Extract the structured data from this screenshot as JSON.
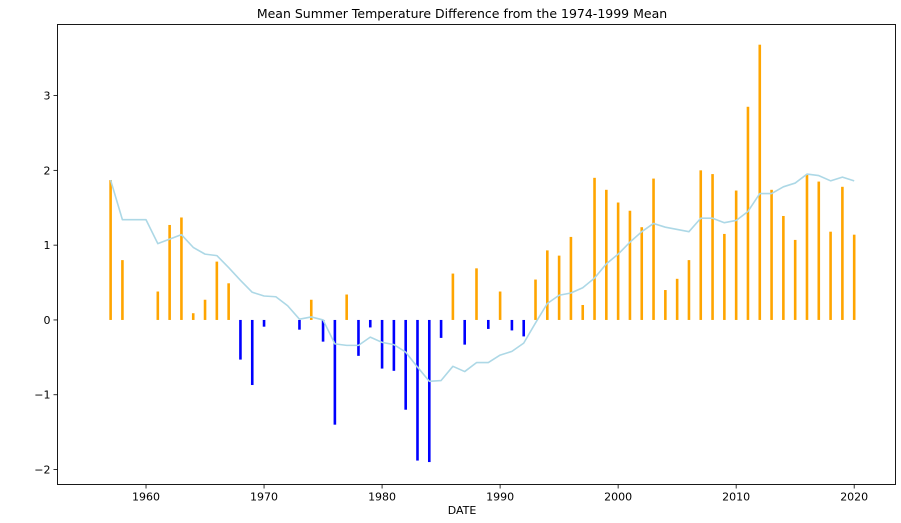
{
  "chart_data": {
    "type": "bar",
    "title": "Mean Summer Temperature Difference from the 1974-1999 Mean",
    "xlabel": "DATE",
    "ylabel": "",
    "xlim": [
      1952.5,
      2023.5
    ],
    "ylim": [
      -2.2,
      3.95
    ],
    "xticks": [
      1960,
      1970,
      1980,
      1990,
      2000,
      2010,
      2020
    ],
    "yticks": [
      -2,
      -1,
      0,
      1,
      2,
      3
    ],
    "ytick_labels": [
      "−2",
      "−1",
      "0",
      "1",
      "2",
      "3"
    ],
    "grid": false,
    "legend": "none",
    "colors": {
      "positive": "#FFA500",
      "negative": "#0000FF",
      "rolling_mean": "#ADD8E6"
    },
    "bars": {
      "x": [
        1957,
        1958,
        1961,
        1962,
        1963,
        1964,
        1965,
        1966,
        1967,
        1968,
        1969,
        1970,
        1973,
        1974,
        1975,
        1976,
        1977,
        1978,
        1979,
        1980,
        1981,
        1982,
        1983,
        1984,
        1985,
        1986,
        1987,
        1988,
        1989,
        1990,
        1991,
        1992,
        1993,
        1994,
        1995,
        1996,
        1997,
        1998,
        1999,
        2000,
        2001,
        2002,
        2003,
        2004,
        2005,
        2006,
        2007,
        2008,
        2009,
        2010,
        2011,
        2012,
        2013,
        2014,
        2015,
        2016,
        2017,
        2018,
        2019,
        2020
      ],
      "values": [
        1.87,
        0.8,
        0.38,
        1.27,
        1.37,
        0.09,
        0.27,
        0.78,
        0.49,
        -0.53,
        -0.87,
        -0.09,
        -0.13,
        0.27,
        -0.29,
        -1.4,
        0.34,
        -0.48,
        -0.1,
        -0.65,
        -0.68,
        -1.2,
        -1.88,
        -1.9,
        -0.24,
        0.62,
        -0.33,
        0.69,
        -0.12,
        0.38,
        -0.14,
        -0.22,
        0.54,
        0.93,
        0.86,
        1.11,
        0.2,
        1.9,
        1.74,
        1.57,
        1.46,
        1.24,
        1.89,
        0.4,
        0.55,
        0.8,
        2.0,
        1.95,
        1.15,
        1.73,
        2.85,
        3.68,
        1.74,
        1.39,
        1.07,
        1.95,
        1.85,
        1.18,
        1.78,
        1.14
      ]
    },
    "rolling_mean": {
      "x": [
        1957,
        1958,
        1959,
        1960,
        1961,
        1962,
        1963,
        1964,
        1965,
        1966,
        1967,
        1968,
        1969,
        1970,
        1971,
        1972,
        1973,
        1974,
        1975,
        1976,
        1977,
        1978,
        1979,
        1980,
        1981,
        1982,
        1983,
        1984,
        1985,
        1986,
        1987,
        1988,
        1989,
        1990,
        1991,
        1992,
        1993,
        1994,
        1995,
        1996,
        1997,
        1998,
        1999,
        2000,
        2001,
        2002,
        2003,
        2004,
        2005,
        2006,
        2007,
        2008,
        2009,
        2010,
        2011,
        2012,
        2013,
        2014,
        2015,
        2016,
        2017,
        2018,
        2019,
        2020
      ],
      "values": [
        1.87,
        1.34,
        1.34,
        1.34,
        1.02,
        1.08,
        1.14,
        0.97,
        0.88,
        0.86,
        0.7,
        0.53,
        0.37,
        0.32,
        0.31,
        0.19,
        0.01,
        0.04,
        0.0,
        -0.32,
        -0.34,
        -0.34,
        -0.23,
        -0.3,
        -0.33,
        -0.43,
        -0.63,
        -0.82,
        -0.81,
        -0.62,
        -0.69,
        -0.57,
        -0.57,
        -0.47,
        -0.42,
        -0.31,
        -0.04,
        0.22,
        0.33,
        0.36,
        0.43,
        0.56,
        0.75,
        0.88,
        1.04,
        1.18,
        1.29,
        1.24,
        1.21,
        1.18,
        1.36,
        1.36,
        1.3,
        1.33,
        1.45,
        1.69,
        1.69,
        1.78,
        1.83,
        1.95,
        1.93,
        1.86,
        1.91,
        1.86
      ]
    }
  }
}
